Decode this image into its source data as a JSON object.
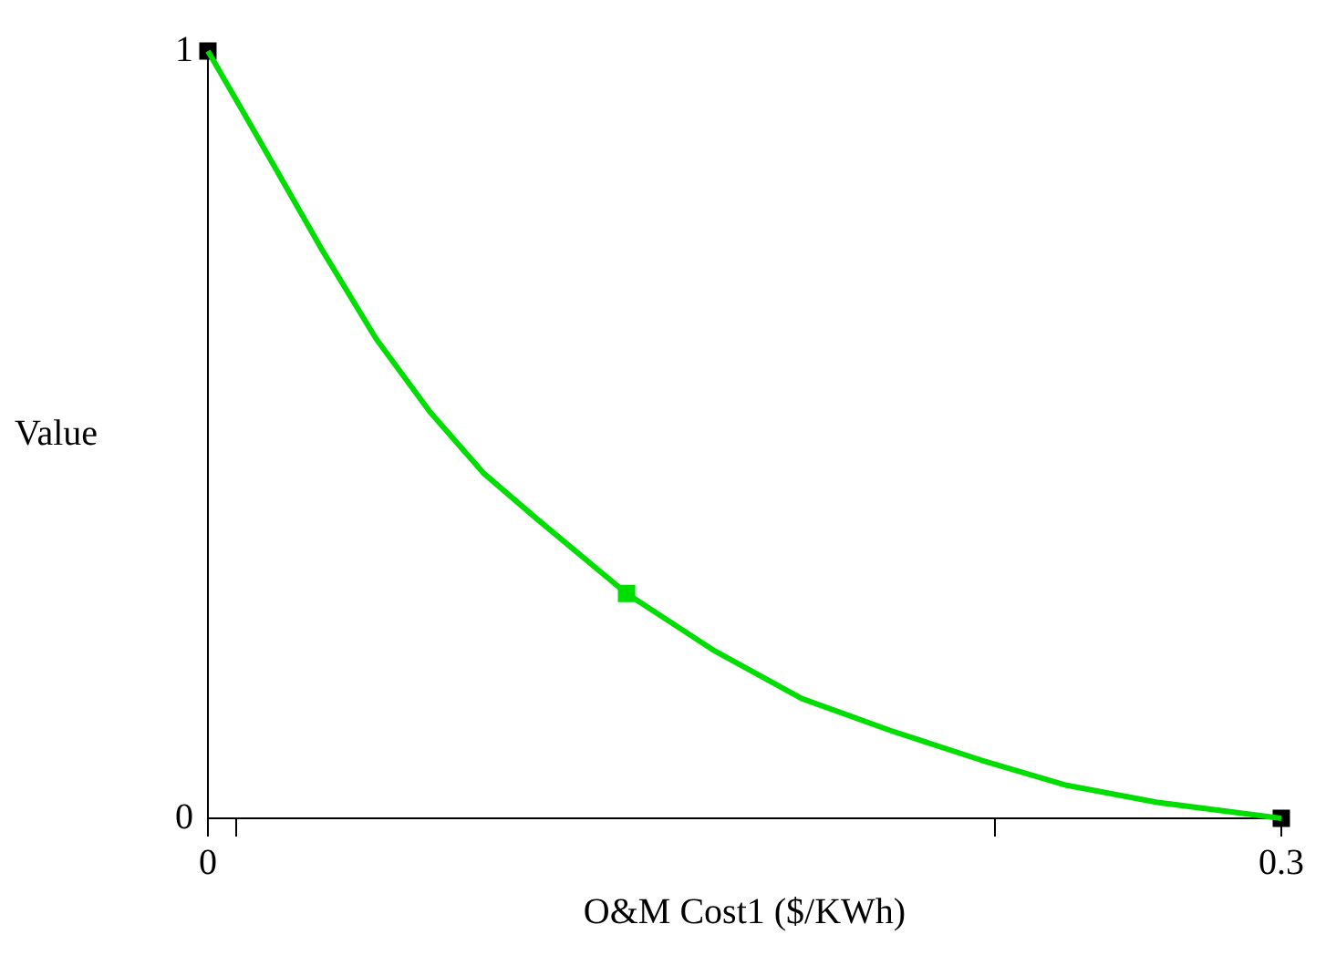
{
  "chart_data": {
    "type": "line",
    "xlabel": "O&M Cost1 ($/KWh)",
    "ylabel": "Value",
    "xlim": [
      0,
      0.3
    ],
    "xticks": [
      0,
      {
        "value": 0.008,
        "label": null
      },
      {
        "value": 0.22,
        "label": null
      },
      0.3
    ],
    "ylim": [
      0,
      1
    ],
    "yticks": [
      0,
      1
    ],
    "grid": false,
    "legend": false,
    "series": [
      {
        "color": "#00dd00",
        "marker": "none",
        "x": [
          0,
          0.0124,
          0.032,
          0.047,
          0.062,
          0.077,
          0.092,
          0.117,
          0.141,
          0.166,
          0.191,
          0.216,
          0.24,
          0.265,
          0.3
        ],
        "values": [
          1,
          0.9,
          0.74,
          0.625,
          0.53,
          0.45,
          0.39,
          0.293,
          0.22,
          0.156,
          0.114,
          0.076,
          0.043,
          0.021,
          0
        ]
      },
      {
        "type": "scatter",
        "marker": "square",
        "x": [
          0,
          0.117,
          0.3
        ],
        "values": [
          1,
          0.293,
          0
        ],
        "colors": [
          "#000000",
          "#00dd00",
          "#000000"
        ]
      }
    ]
  }
}
